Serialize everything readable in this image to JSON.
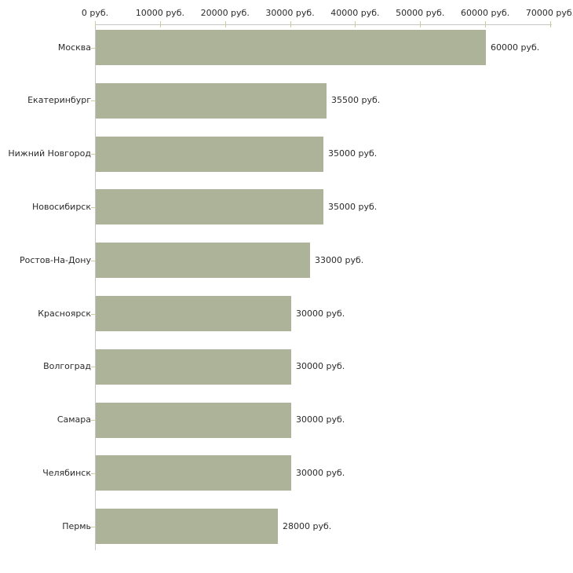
{
  "chart_data": {
    "type": "bar",
    "orientation": "horizontal",
    "title": "",
    "unit": "руб.",
    "categories": [
      "Москва",
      "Екатеринбург",
      "Нижний Новгород",
      "Новосибирск",
      "Ростов-На-Дону",
      "Красноярск",
      "Волгоград",
      "Самара",
      "Челябинск",
      "Пермь"
    ],
    "values": [
      60000,
      35500,
      35000,
      35000,
      33000,
      30000,
      30000,
      30000,
      30000,
      28000
    ],
    "value_labels": [
      "60000 руб.",
      "35500 руб.",
      "35000 руб.",
      "35000 руб.",
      "33000 руб.",
      "30000 руб.",
      "30000 руб.",
      "30000 руб.",
      "30000 руб.",
      "28000 руб."
    ],
    "x_axis": {
      "position": "top",
      "range": [
        0,
        70000
      ],
      "ticks": [
        0,
        10000,
        20000,
        30000,
        40000,
        50000,
        60000,
        70000
      ],
      "tick_labels": [
        "0 руб.",
        "10000 руб.",
        "20000 руб.",
        "30000 руб.",
        "40000 руб.",
        "50000 руб.",
        "60000 руб.",
        "70000 руб."
      ]
    },
    "legend": null,
    "grid": false,
    "colors": {
      "bar": "#adb399",
      "axis_line": "#c6c6c6",
      "tick_mark": "#cccc99",
      "text": "#2b2b2b",
      "background": "#ffffff"
    }
  }
}
